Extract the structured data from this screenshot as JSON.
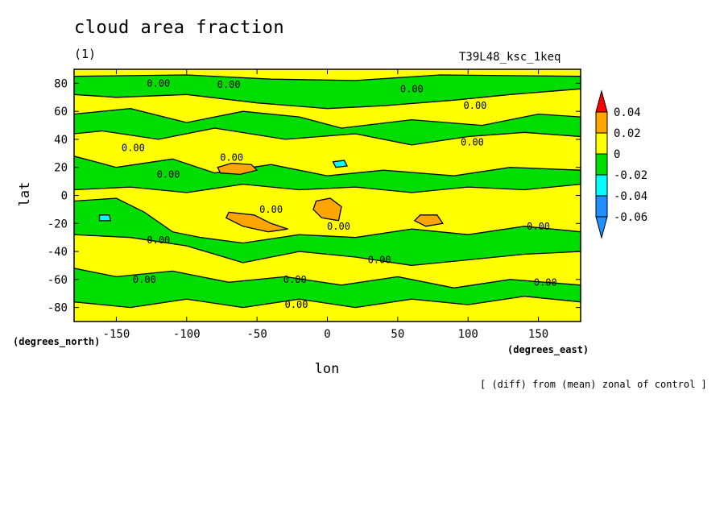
{
  "figure": {
    "title": "cloud area fraction",
    "subtitle": "(1)",
    "run_label": "T39L48_ksc_1keq",
    "footnote": "[ (diff) from (mean) zonal of control ]"
  },
  "chart_data": {
    "type": "heatmap",
    "title": "cloud area fraction",
    "xlabel": "lon",
    "ylabel": "lat",
    "x_unit_label": "(degrees_east)",
    "y_unit_label": "(degrees_north)",
    "xlim": [
      -180,
      180
    ],
    "ylim": [
      -90,
      90
    ],
    "x_ticks": [
      -150,
      -100,
      -50,
      0,
      50,
      100,
      150
    ],
    "y_ticks": [
      -80,
      -60,
      -40,
      -20,
      0,
      20,
      40,
      60,
      80
    ],
    "x_tick_labels": [
      "-150",
      "-100",
      "-50",
      "0",
      "50",
      "100",
      "150"
    ],
    "y_tick_labels": [
      "-80",
      "-60",
      "-40",
      "-20",
      "0",
      "20",
      "40",
      "60",
      "80"
    ],
    "colorbar": {
      "levels": [
        -0.06,
        -0.04,
        -0.02,
        0,
        0.02,
        0.04
      ],
      "labels": [
        "0.04",
        "0.02",
        "0",
        "-0.02",
        "-0.04",
        "-0.06"
      ],
      "colors_top_to_bottom": [
        "#ff0000",
        "#ffa500",
        "#ffff00",
        "#00dd00",
        "#00ffff",
        "#1e90ff",
        "#1e90ff"
      ]
    },
    "contour_labels": [
      {
        "text": "0.00",
        "lon": -120,
        "lat": 80
      },
      {
        "text": "0.00",
        "lon": -70,
        "lat": 79
      },
      {
        "text": "0.00",
        "lon": 60,
        "lat": 76
      },
      {
        "text": "0.00",
        "lon": 105,
        "lat": 64
      },
      {
        "text": "0.00",
        "lon": -138,
        "lat": 34
      },
      {
        "text": "0.00",
        "lon": 103,
        "lat": 38
      },
      {
        "text": "0.00",
        "lon": -68,
        "lat": 27
      },
      {
        "text": "0.00",
        "lon": -113,
        "lat": 15
      },
      {
        "text": "0.00",
        "lon": -40,
        "lat": -10
      },
      {
        "text": "0.00",
        "lon": 8,
        "lat": -22
      },
      {
        "text": "0.00",
        "lon": -120,
        "lat": -32
      },
      {
        "text": "0.00",
        "lon": 150,
        "lat": -22
      },
      {
        "text": "0.00",
        "lon": 37,
        "lat": -46
      },
      {
        "text": "0.00",
        "lon": -130,
        "lat": -60
      },
      {
        "text": "0.00",
        "lon": -23,
        "lat": -60
      },
      {
        "text": "0.00",
        "lon": 155,
        "lat": -62
      },
      {
        "text": "0.00",
        "lon": -22,
        "lat": -78
      }
    ],
    "regions": [
      {
        "level": "0 to 0.02",
        "color": "#ffff00",
        "lon": [
          -180,
          180
        ],
        "lat": [
          -90,
          90
        ]
      },
      {
        "level": "-0.02 to 0",
        "color": "#00dd00",
        "points": [
          [
            -180,
            85
          ],
          [
            -100,
            86
          ],
          [
            -40,
            83
          ],
          [
            20,
            82
          ],
          [
            80,
            86
          ],
          [
            180,
            85
          ],
          [
            180,
            76
          ],
          [
            130,
            72
          ],
          [
            90,
            68
          ],
          [
            40,
            64
          ],
          [
            0,
            62
          ],
          [
            -50,
            66
          ],
          [
            -100,
            72
          ],
          [
            -150,
            70
          ],
          [
            -180,
            72
          ]
        ]
      },
      {
        "level": "-0.02 to 0",
        "color": "#00dd00",
        "points": [
          [
            -180,
            58
          ],
          [
            -140,
            62
          ],
          [
            -100,
            52
          ],
          [
            -60,
            60
          ],
          [
            -20,
            56
          ],
          [
            10,
            48
          ],
          [
            60,
            54
          ],
          [
            110,
            50
          ],
          [
            150,
            58
          ],
          [
            180,
            56
          ],
          [
            180,
            42
          ],
          [
            140,
            45
          ],
          [
            100,
            42
          ],
          [
            60,
            36
          ],
          [
            20,
            44
          ],
          [
            -30,
            40
          ],
          [
            -80,
            48
          ],
          [
            -120,
            40
          ],
          [
            -160,
            46
          ],
          [
            -180,
            44
          ]
        ]
      },
      {
        "level": "-0.02 to 0",
        "color": "#00dd00",
        "points": [
          [
            -180,
            28
          ],
          [
            -150,
            20
          ],
          [
            -110,
            26
          ],
          [
            -80,
            16
          ],
          [
            -40,
            22
          ],
          [
            0,
            14
          ],
          [
            40,
            18
          ],
          [
            90,
            14
          ],
          [
            130,
            20
          ],
          [
            180,
            18
          ],
          [
            180,
            8
          ],
          [
            140,
            4
          ],
          [
            100,
            6
          ],
          [
            60,
            2
          ],
          [
            20,
            6
          ],
          [
            -20,
            4
          ],
          [
            -60,
            8
          ],
          [
            -100,
            2
          ],
          [
            -140,
            6
          ],
          [
            -180,
            4
          ]
        ]
      },
      {
        "level": "-0.02 to 0",
        "color": "#00dd00",
        "points": [
          [
            -180,
            -4
          ],
          [
            -150,
            -2
          ],
          [
            -130,
            -12
          ],
          [
            -110,
            -26
          ],
          [
            -90,
            -30
          ],
          [
            -60,
            -34
          ],
          [
            -20,
            -28
          ],
          [
            20,
            -30
          ],
          [
            60,
            -24
          ],
          [
            100,
            -28
          ],
          [
            140,
            -22
          ],
          [
            180,
            -26
          ],
          [
            180,
            -40
          ],
          [
            140,
            -42
          ],
          [
            100,
            -46
          ],
          [
            60,
            -50
          ],
          [
            20,
            -44
          ],
          [
            -20,
            -40
          ],
          [
            -60,
            -48
          ],
          [
            -100,
            -36
          ],
          [
            -140,
            -30
          ],
          [
            -180,
            -28
          ]
        ]
      },
      {
        "level": "-0.02 to 0",
        "color": "#00dd00",
        "points": [
          [
            -180,
            -52
          ],
          [
            -150,
            -58
          ],
          [
            -110,
            -54
          ],
          [
            -70,
            -62
          ],
          [
            -30,
            -58
          ],
          [
            10,
            -64
          ],
          [
            50,
            -58
          ],
          [
            90,
            -66
          ],
          [
            130,
            -60
          ],
          [
            180,
            -64
          ],
          [
            180,
            -76
          ],
          [
            140,
            -72
          ],
          [
            100,
            -78
          ],
          [
            60,
            -74
          ],
          [
            20,
            -80
          ],
          [
            -20,
            -74
          ],
          [
            -60,
            -80
          ],
          [
            -100,
            -74
          ],
          [
            -140,
            -80
          ],
          [
            -180,
            -76
          ]
        ]
      },
      {
        "level": "0.02 to 0.04",
        "color": "#ffa500",
        "points": [
          [
            -78,
            20
          ],
          [
            -68,
            23
          ],
          [
            -54,
            22
          ],
          [
            -50,
            18
          ],
          [
            -62,
            15
          ],
          [
            -76,
            16
          ]
        ]
      },
      {
        "level": "0.02 to 0.04",
        "color": "#ffa500",
        "points": [
          [
            -8,
            -4
          ],
          [
            2,
            -2
          ],
          [
            10,
            -8
          ],
          [
            8,
            -18
          ],
          [
            -4,
            -16
          ],
          [
            -10,
            -10
          ]
        ]
      },
      {
        "level": "0.02 to 0.04",
        "color": "#ffa500",
        "points": [
          [
            -70,
            -12
          ],
          [
            -52,
            -14
          ],
          [
            -40,
            -20
          ],
          [
            -28,
            -24
          ],
          [
            -42,
            -26
          ],
          [
            -60,
            -22
          ],
          [
            -72,
            -16
          ]
        ]
      },
      {
        "level": "0.02 to 0.04",
        "color": "#ffa500",
        "points": [
          [
            66,
            -14
          ],
          [
            78,
            -14
          ],
          [
            82,
            -20
          ],
          [
            70,
            -22
          ],
          [
            62,
            -18
          ]
        ]
      },
      {
        "level": "-0.04 to -0.02",
        "color": "#00ffff",
        "points": [
          [
            4,
            24
          ],
          [
            12,
            25
          ],
          [
            14,
            21
          ],
          [
            6,
            20
          ]
        ]
      },
      {
        "level": "-0.04 to -0.02",
        "color": "#00ffff",
        "points": [
          [
            -162,
            -14
          ],
          [
            -155,
            -14
          ],
          [
            -154,
            -18
          ],
          [
            -162,
            -18
          ]
        ]
      }
    ]
  }
}
